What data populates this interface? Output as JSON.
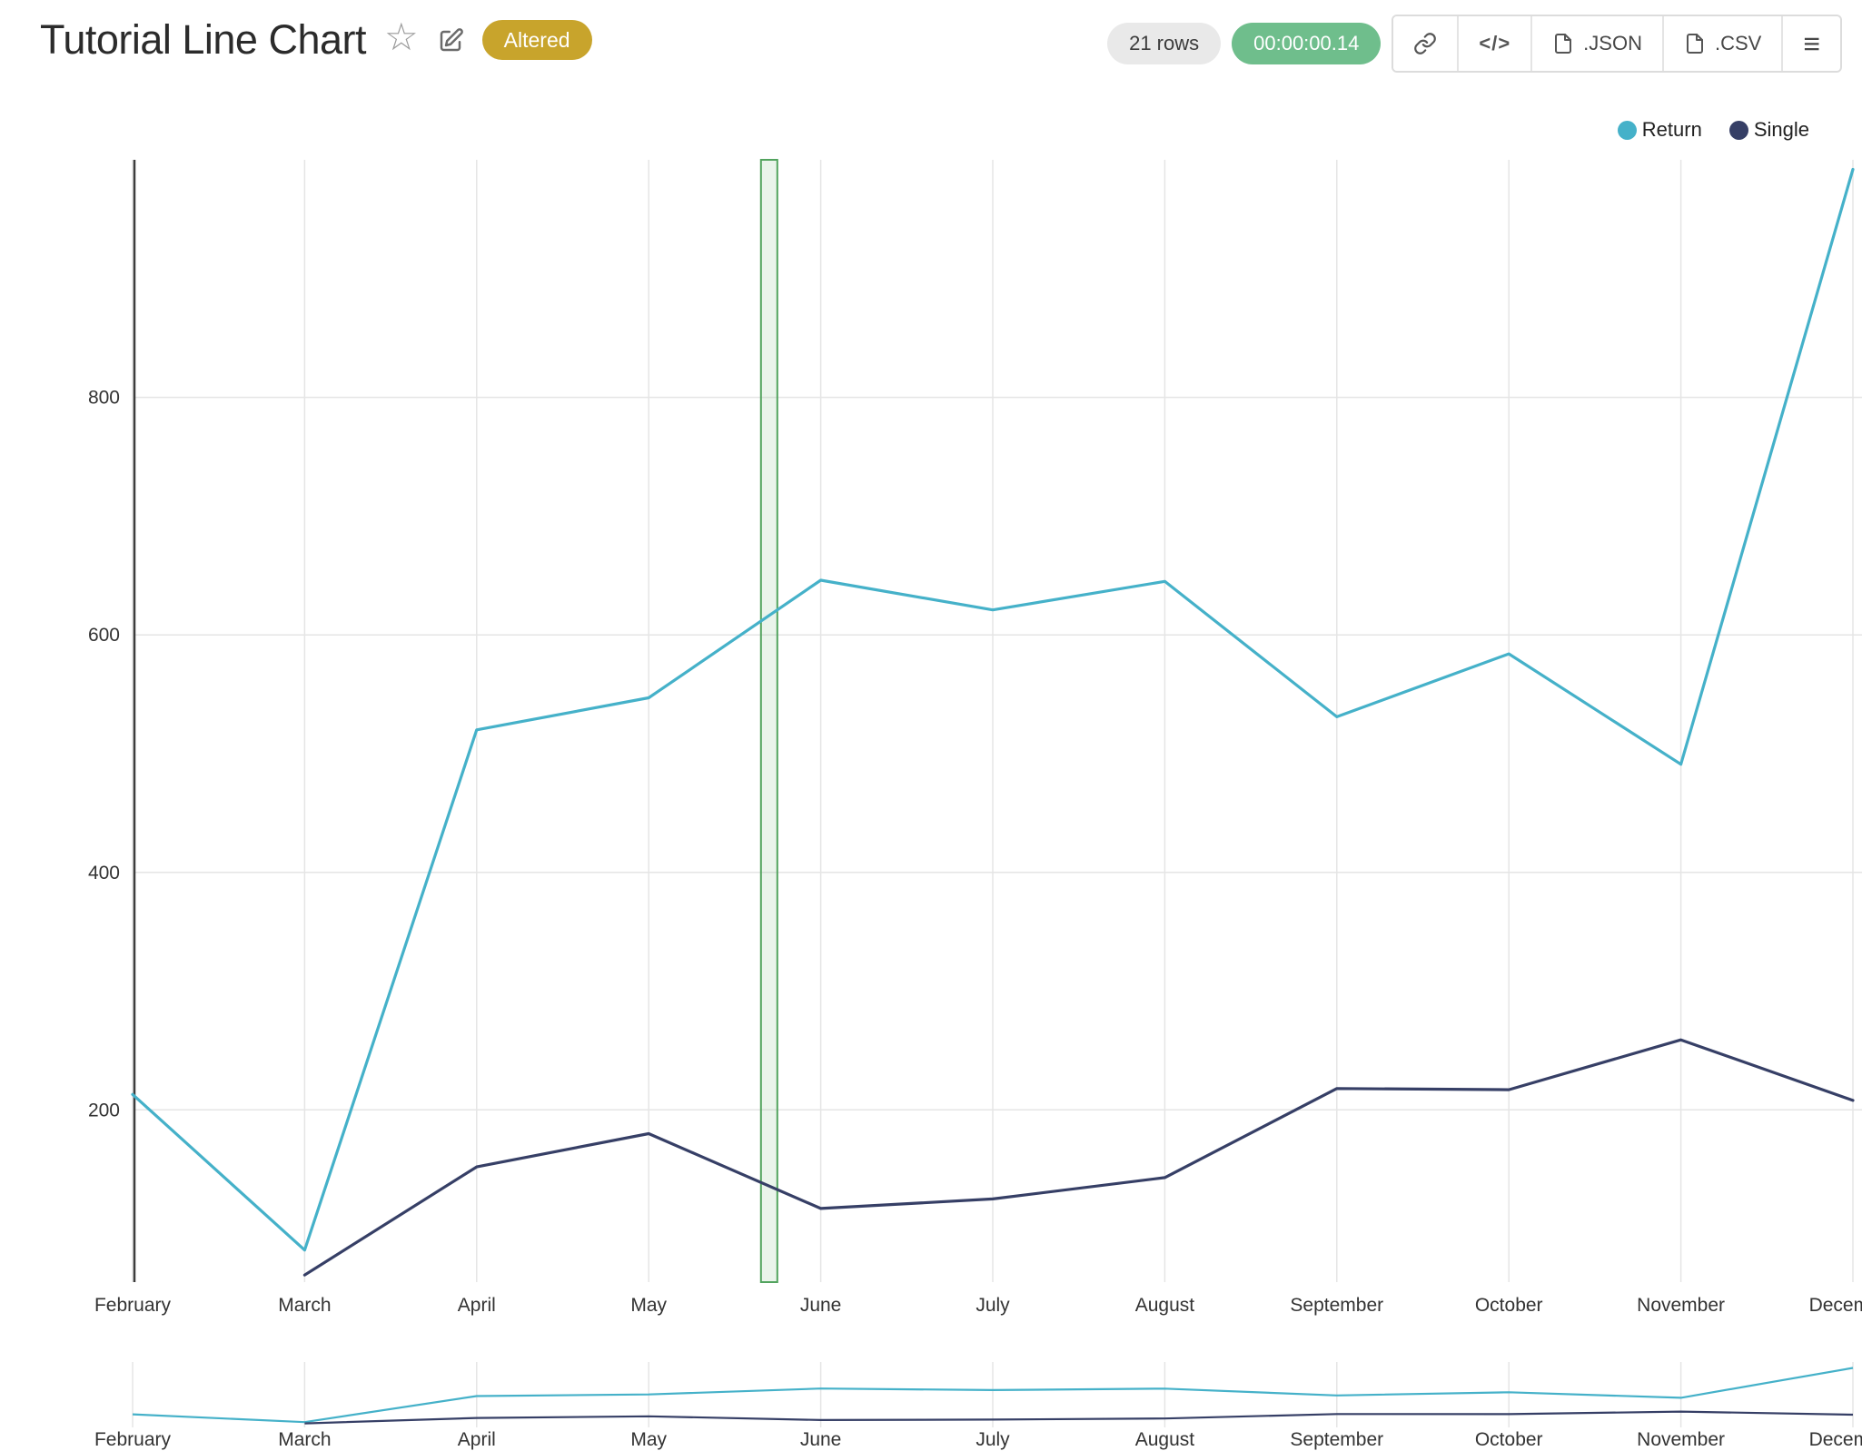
{
  "header": {
    "title": "Tutorial Line Chart",
    "altered_badge": "Altered",
    "rows_badge": "21 rows",
    "timer_badge": "00:00:00.14",
    "embed_label": "</>",
    "export_json_label": ".JSON",
    "export_csv_label": ".CSV",
    "menu_icon": "≡"
  },
  "colors": {
    "return_line": "#45b1c9",
    "single_line": "#363f66",
    "altered_bg": "#c8a42c",
    "timer_bg": "#6fbe8c",
    "rows_bg": "#e9e9e9",
    "grid": "#e5e5e5",
    "axis": "#3d3d3d",
    "annotation_fill": "rgba(82,163,94,0.12)",
    "annotation_stroke": "#52a35e"
  },
  "chart_data": {
    "type": "line",
    "title": "Tutorial Line Chart",
    "categories": [
      "February",
      "March",
      "April",
      "May",
      "June",
      "July",
      "August",
      "September",
      "October",
      "November",
      "December"
    ],
    "series": [
      {
        "name": "Return",
        "color": "#45b1c9",
        "values": [
          213,
          82,
          520,
          547,
          646,
          621,
          645,
          531,
          584,
          491,
          992
        ]
      },
      {
        "name": "Single",
        "color": "#363f66",
        "values": [
          null,
          61,
          152,
          180,
          117,
          125,
          143,
          218,
          217,
          259,
          208
        ]
      }
    ],
    "yticks": [
      200,
      400,
      600,
      800
    ],
    "ylim": [
      55,
      1000
    ],
    "grid": true,
    "legend_position": "top-right",
    "annotation": {
      "type": "interval-band",
      "between": [
        "May",
        "June"
      ],
      "fraction": 0.7
    },
    "has_mini_overview": true
  }
}
